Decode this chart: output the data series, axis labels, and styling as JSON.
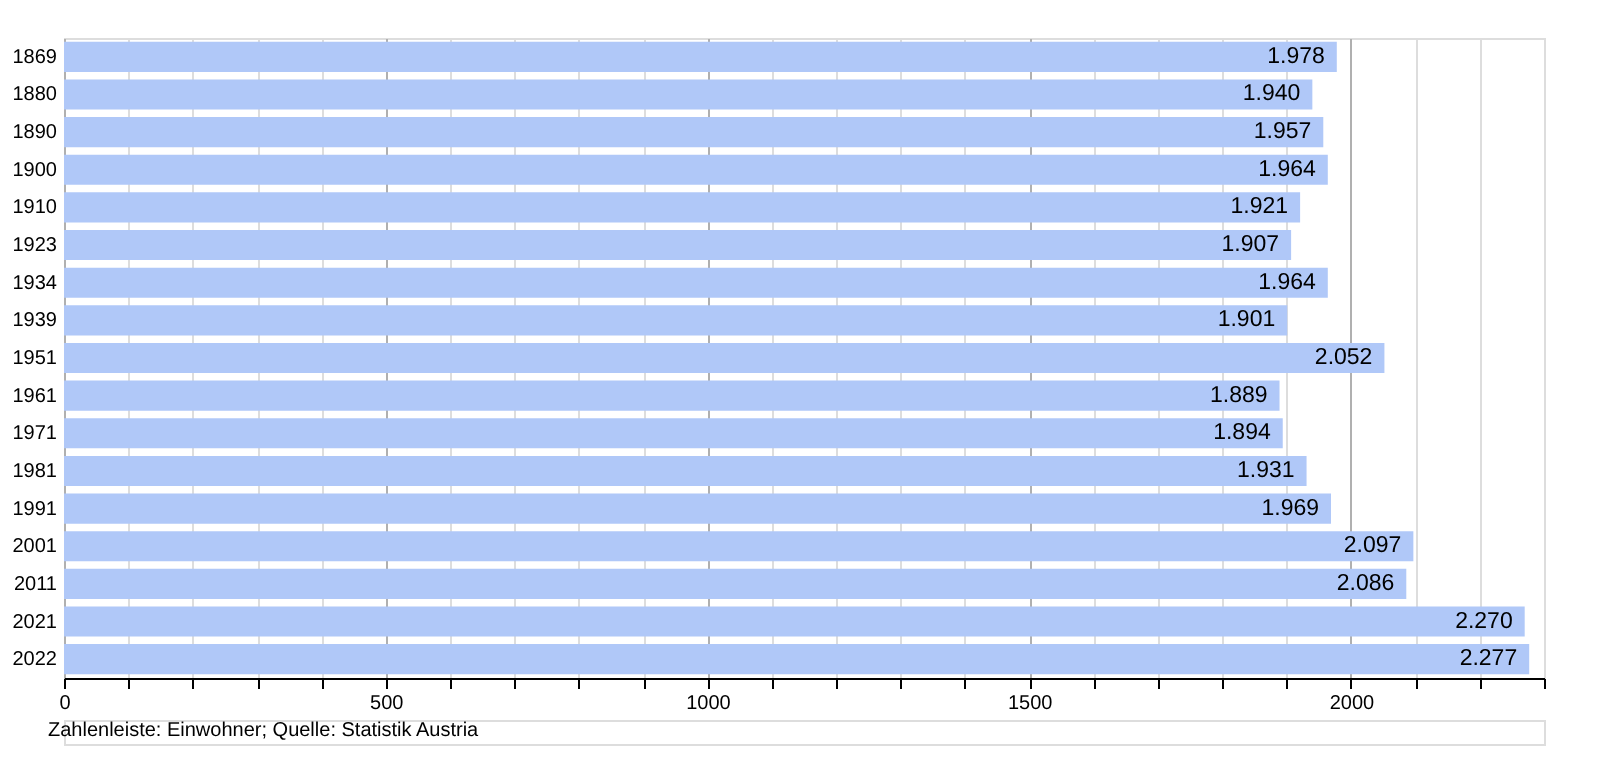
{
  "chart_data": {
    "type": "bar",
    "orientation": "horizontal",
    "categories": [
      "1869",
      "1880",
      "1890",
      "1900",
      "1910",
      "1923",
      "1934",
      "1939",
      "1951",
      "1961",
      "1971",
      "1981",
      "1991",
      "2001",
      "2011",
      "2021",
      "2022"
    ],
    "values": [
      1978,
      1940,
      1957,
      1964,
      1921,
      1907,
      1964,
      1901,
      2052,
      1889,
      1894,
      1931,
      1969,
      2097,
      2086,
      2270,
      2277
    ],
    "value_labels": [
      "1.978",
      "1.940",
      "1.957",
      "1.964",
      "1.921",
      "1.907",
      "1.964",
      "1.901",
      "2.052",
      "1.889",
      "1.894",
      "1.931",
      "1.969",
      "2.097",
      "2.086",
      "2.270",
      "2.277"
    ],
    "color": "#b0c8f8",
    "xlim": [
      0,
      2300
    ],
    "xticks": [
      0,
      {
        "value": 100,
        "label": null
      },
      {
        "value": 200,
        "label": null
      },
      {
        "value": 300,
        "label": null
      },
      {
        "value": 400,
        "label": null
      },
      500,
      {
        "value": 600,
        "label": null
      },
      {
        "value": 700,
        "label": null
      },
      {
        "value": 800,
        "label": null
      },
      {
        "value": 900,
        "label": null
      },
      1000,
      {
        "value": 1100,
        "label": null
      },
      {
        "value": 1200,
        "label": null
      },
      {
        "value": 1300,
        "label": null
      },
      {
        "value": 1400,
        "label": null
      },
      1500,
      {
        "value": 1600,
        "label": null
      },
      {
        "value": 1700,
        "label": null
      },
      {
        "value": 1800,
        "label": null
      },
      {
        "value": 1900,
        "label": null
      },
      2000,
      {
        "value": 2100,
        "label": null
      },
      {
        "value": 2200,
        "label": null
      },
      {
        "value": 2300,
        "label": null
      }
    ],
    "grid": "x",
    "legend": false,
    "annotations": [
      "Zahlenleiste: Einwohner; Quelle: Statistik Austria"
    ]
  }
}
